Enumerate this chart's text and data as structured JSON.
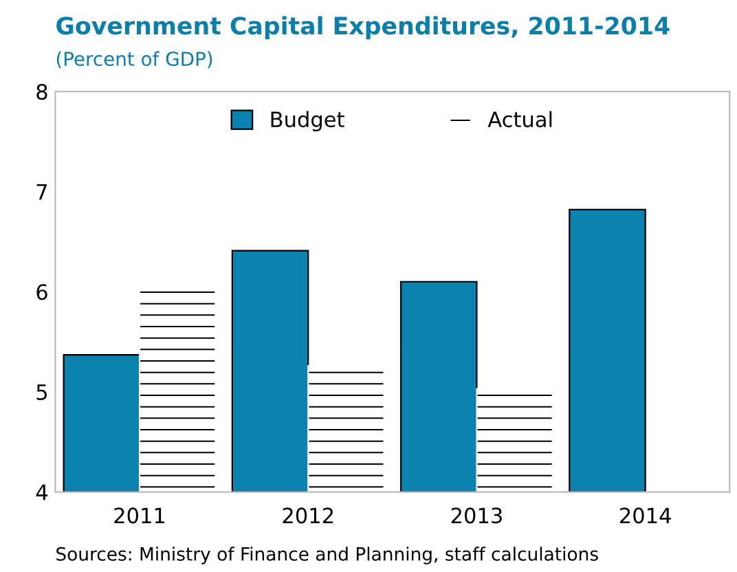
{
  "chart_data": {
    "type": "bar",
    "title": "Government Capital Expenditures, 2011-2014",
    "subtitle": "(Percent of GDP)",
    "categories": [
      "2011",
      "2012",
      "2013",
      "2014"
    ],
    "series": [
      {
        "name": "Budget",
        "color": "#0b82b0",
        "values": [
          5.37,
          6.41,
          6.1,
          6.82
        ]
      },
      {
        "name": "Actual",
        "color": "#ffffff",
        "values": [
          6.01,
          5.26,
          5.03,
          null
        ]
      }
    ],
    "ylim": [
      4,
      8
    ],
    "yticks": [
      4,
      5,
      6,
      7,
      8
    ],
    "grid": false,
    "legend": "top",
    "annotations": [
      "Sources: Ministry of Finance and Planning, staff calculations"
    ]
  }
}
